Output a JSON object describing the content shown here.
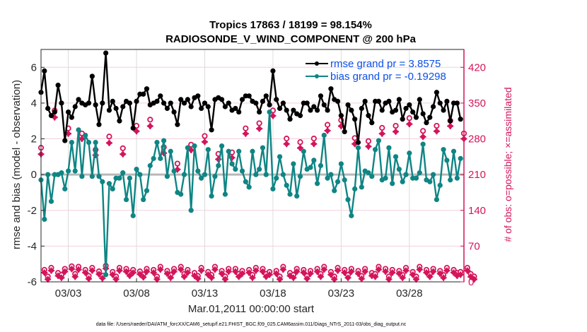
{
  "chart_data": {
    "type": "line",
    "title": "Tropics 17863 / 18199 = 98.154%",
    "subtitle": "RADIOSONDE_V_WIND_COMPONENT @ 200 hPa",
    "xlabel": "Mar.01,2011 00:00:00 start",
    "ylabel": "rmse and bias (model - observation)",
    "y2label": "# of obs: o=possible; ×=assimilated",
    "footer": "data file: /Users/raeder/DAI/ATM_forcXX/CAM6_setup/f.e21.FHIST_BGC.f09_025.CAM6assim.011/Diags_NTrS_2011-03/obs_diag_output.nc",
    "xlim_days": [
      0,
      31
    ],
    "x_step_days": 0.25,
    "xticks": [
      {
        "day": 2,
        "label": "03/03"
      },
      {
        "day": 7,
        "label": "03/08"
      },
      {
        "day": 12,
        "label": "03/13"
      },
      {
        "day": 17,
        "label": "03/18"
      },
      {
        "day": 22,
        "label": "03/23"
      },
      {
        "day": 27,
        "label": "03/28"
      }
    ],
    "ylim": [
      -6,
      7
    ],
    "yticks": [
      -6,
      -4,
      -2,
      0,
      2,
      4,
      6
    ],
    "y2lim": [
      0,
      455
    ],
    "y2ticks": [
      0,
      70,
      140,
      210,
      280,
      350,
      420
    ],
    "grid": true,
    "legend_position": "top-right",
    "series": [
      {
        "name": "rmse grand pr = 3.8575",
        "color": "#000000",
        "axis": "left",
        "values": [
          4.6,
          5.8,
          3.7,
          3.3,
          3.5,
          5.0,
          4.0,
          1.9,
          3.5,
          3.2,
          3.8,
          4.2,
          4.0,
          3.9,
          4.0,
          5.5,
          3.9,
          2.8,
          4.0,
          6.8,
          3.6,
          4.1,
          3.7,
          3.0,
          3.8,
          4.1,
          4.0,
          2.6,
          4.1,
          4.5,
          4.5,
          4.8,
          3.9,
          4.0,
          4.1,
          4.4,
          4.0,
          3.7,
          4.0,
          3.5,
          2.8,
          4.2,
          4.0,
          4.2,
          3.8,
          4.3,
          4.4,
          3.7,
          4.0,
          3.8,
          2.5,
          4.2,
          4.3,
          4.2,
          3.8,
          4.0,
          3.6,
          3.7,
          3.5,
          4.2,
          4.4,
          4.4,
          4.1,
          4.0,
          3.5,
          4.1,
          4.4,
          3.9,
          5.8,
          4.2,
          3.7,
          4.0,
          3.6,
          3.1,
          3.6,
          3.4,
          3.3,
          4.0,
          4.0,
          3.6,
          3.8,
          3.6,
          4.4,
          3.9,
          3.6,
          4.8,
          4.2,
          4.1,
          3.3,
          2.4,
          3.9,
          3.6,
          3.1,
          1.8,
          3.7,
          4.1,
          3.3,
          2.9,
          4.1,
          4.1,
          3.6,
          4.0,
          4.1,
          3.5,
          3.6,
          4.2,
          3.1,
          3.7,
          3.9,
          3.5,
          3.2,
          4.2,
          3.4,
          2.9,
          3.2,
          3.8,
          4.6,
          4.0,
          3.6,
          4.1,
          3.0,
          4.0,
          4.0,
          3.1
        ]
      },
      {
        "name": "bias grand pr = -0.19298",
        "color": "#0f8584",
        "axis": "left",
        "values": [
          -0.3,
          -2.5,
          0.0,
          -1.5,
          0.0,
          0.0,
          0.1,
          -0.8,
          0.2,
          1.8,
          0.2,
          2.5,
          -0.1,
          2.2,
          1.8,
          -0.1,
          1.8,
          -0.1,
          -0.4,
          -5.6,
          -0.5,
          -0.8,
          -0.2,
          -0.2,
          0.1,
          -1.4,
          -0.2,
          -2.3,
          0.3,
          0.0,
          -1.4,
          -0.9,
          0.5,
          0.9,
          1.8,
          0.9,
          1.9,
          -0.1,
          1.3,
          0.2,
          -1.0,
          -1.1,
          0.0,
          1.5,
          -2.0,
          1.6,
          0.2,
          -0.2,
          0.0,
          1.4,
          -1.2,
          -0.1,
          0.5,
          1.6,
          -1.1,
          1.3,
          0.6,
          0.3,
          1.3,
          0.2,
          -0.4,
          -0.7,
          1.3,
          0.0,
          0.3,
          1.5,
          0.0,
          3.5,
          -0.8,
          -0.2,
          1.0,
          0.0,
          -0.6,
          -1.1,
          0.6,
          -1.2,
          -0.1,
          1.3,
          0.3,
          0.4,
          0.8,
          -0.5,
          0.5,
          2.2,
          -0.2,
          0.0,
          -0.9,
          -0.4,
          0.6,
          -0.3,
          -1.4,
          -2.3,
          -0.8,
          1.5,
          -0.7,
          0.2,
          0.1,
          -0.1,
          1.4,
          1.9,
          -0.3,
          -0.2,
          1.5,
          -0.5,
          1.0,
          0.3,
          -0.4,
          0.0,
          1.2,
          -0.2,
          -0.2,
          0.1,
          1.7,
          -0.3,
          -0.4,
          0.0,
          -1.4,
          -0.6,
          1.4,
          0.8,
          -0.3,
          1.3,
          -0.2,
          0.9
        ]
      },
      {
        "name": "obs possible",
        "color": "#d4145a",
        "axis": "right",
        "marker": "o",
        "values": [
          257,
          18,
          5,
          22,
          330,
          12,
          8,
          20,
          295,
          25,
          10,
          24,
          285,
          18,
          6,
          22,
          253,
          15,
          7,
          26,
          279,
          14,
          5,
          22,
          256,
          20,
          12,
          18,
          300,
          15,
          9,
          20,
          312,
          18,
          5,
          24,
          258,
          16,
          8,
          20,
          226,
          24,
          10,
          18,
          263,
          12,
          6,
          22,
          280,
          14,
          8,
          24,
          245,
          16,
          5,
          20,
          248,
          20,
          10,
          16,
          295,
          18,
          8,
          22,
          305,
          20,
          10,
          14,
          330,
          16,
          5,
          24,
          275,
          12,
          8,
          20,
          268,
          18,
          6,
          16,
          275,
          20,
          10,
          24,
          302,
          14,
          5,
          22,
          311,
          18,
          8,
          20,
          276,
          16,
          6,
          20,
          270,
          12,
          10,
          24,
          296,
          20,
          5,
          18,
          300,
          16,
          8,
          22,
          315,
          14,
          5,
          24,
          290,
          18,
          10,
          20,
          300,
          16,
          8,
          22,
          310,
          18,
          12,
          14,
          285,
          22,
          10,
          5
        ]
      },
      {
        "name": "obs assimilated",
        "color": "#d4145a",
        "axis": "right",
        "marker": "x",
        "values": [
          250,
          18,
          5,
          22,
          322,
          12,
          8,
          20,
          290,
          25,
          10,
          24,
          280,
          18,
          6,
          22,
          248,
          15,
          7,
          26,
          272,
          14,
          5,
          22,
          250,
          20,
          12,
          18,
          295,
          15,
          9,
          20,
          305,
          18,
          5,
          24,
          252,
          16,
          8,
          20,
          220,
          24,
          10,
          18,
          258,
          12,
          6,
          22,
          274,
          14,
          8,
          24,
          240,
          16,
          5,
          20,
          243,
          20,
          10,
          16,
          290,
          18,
          8,
          22,
          300,
          20,
          10,
          14,
          325,
          16,
          5,
          24,
          270,
          12,
          8,
          20,
          262,
          18,
          6,
          16,
          270,
          20,
          10,
          24,
          296,
          14,
          5,
          22,
          305,
          18,
          8,
          20,
          270,
          16,
          6,
          20,
          265,
          12,
          10,
          24,
          290,
          20,
          5,
          18,
          294,
          16,
          8,
          22,
          309,
          14,
          5,
          24,
          284,
          18,
          10,
          20,
          295,
          16,
          8,
          22,
          305,
          18,
          12,
          14,
          280,
          22,
          10,
          5
        ]
      }
    ]
  }
}
